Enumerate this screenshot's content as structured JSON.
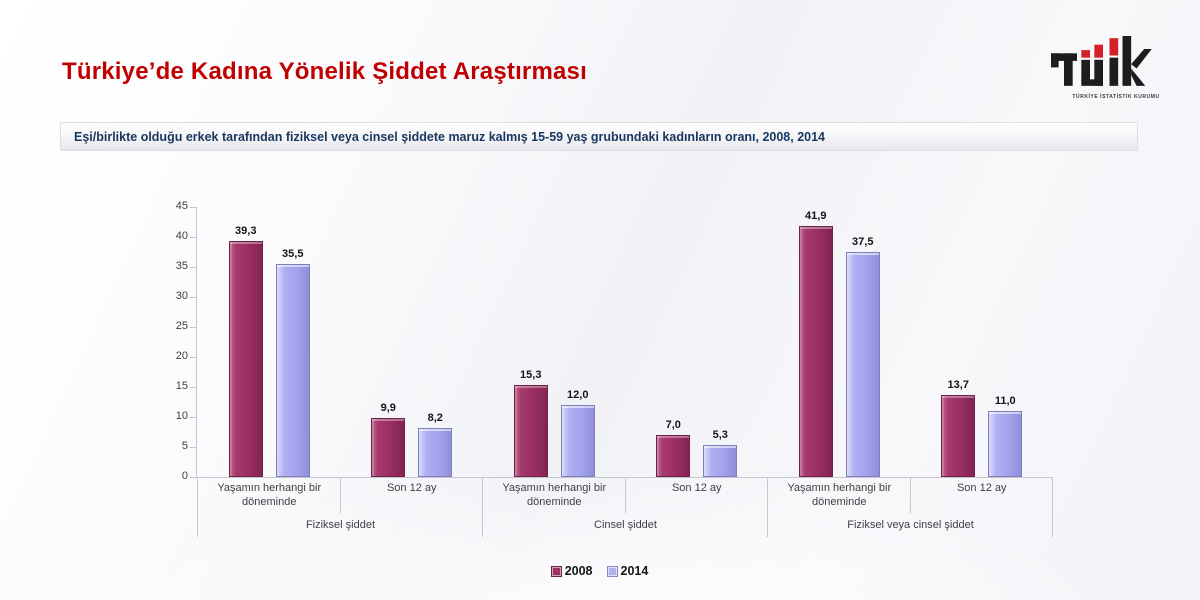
{
  "header": {
    "title": "Türkiye’de Kadına Yönelik Şiddet Araştırması",
    "title_color": "#c00000",
    "subtitle": "Eşi/birlikte olduğu erkek tarafından fiziksel veya cinsel şiddete maruz kalmış 15-59 yaş grubundaki kadınların oranı, 2008, 2014",
    "subtitle_color": "#17375e"
  },
  "logo": {
    "name": "TÜİK",
    "tagline": "TÜRKİYE İSTATİSTİK KURUMU",
    "black": "#1d1d1f",
    "red": "#d42027"
  },
  "chart_data": {
    "type": "bar",
    "title": "",
    "xlabel": "",
    "ylabel": "",
    "ylim": [
      0,
      45
    ],
    "yticks": [
      0,
      5,
      10,
      15,
      20,
      25,
      30,
      35,
      40,
      45
    ],
    "grid": false,
    "legend_position": "bottom",
    "groups": [
      {
        "label": "Fiziksel şiddet",
        "subcategories": [
          "Yaşamın herhangi bir döneminde",
          "Son 12 ay"
        ]
      },
      {
        "label": "Cinsel şiddet",
        "subcategories": [
          "Yaşamın herhangi bir döneminde",
          "Son 12 ay"
        ]
      },
      {
        "label": "Fiziksel veya cinsel şiddet",
        "subcategories": [
          "Yaşamın herhangi bir döneminde",
          "Son 12 ay"
        ]
      }
    ],
    "categories": [
      "Fiziksel şiddet / Yaşamın herhangi bir döneminde",
      "Fiziksel şiddet / Son 12 ay",
      "Cinsel şiddet / Yaşamın herhangi bir döneminde",
      "Cinsel şiddet / Son 12 ay",
      "Fiziksel veya cinsel şiddet / Yaşamın herhangi bir döneminde",
      "Fiziksel veya cinsel şiddet / Son 12 ay"
    ],
    "series": [
      {
        "name": "2008",
        "color": "#9e3164",
        "values": [
          39.3,
          9.9,
          15.3,
          7.0,
          41.9,
          13.7
        ],
        "labels": [
          "39,3",
          "9,9",
          "15,3",
          "7,0",
          "41,9",
          "13,7"
        ]
      },
      {
        "name": "2014",
        "color": "#a8a8ef",
        "values": [
          35.5,
          8.2,
          12.0,
          5.3,
          37.5,
          11.0
        ],
        "labels": [
          "35,5",
          "8,2",
          "12,0",
          "5,3",
          "37,5",
          "11,0"
        ]
      }
    ]
  }
}
